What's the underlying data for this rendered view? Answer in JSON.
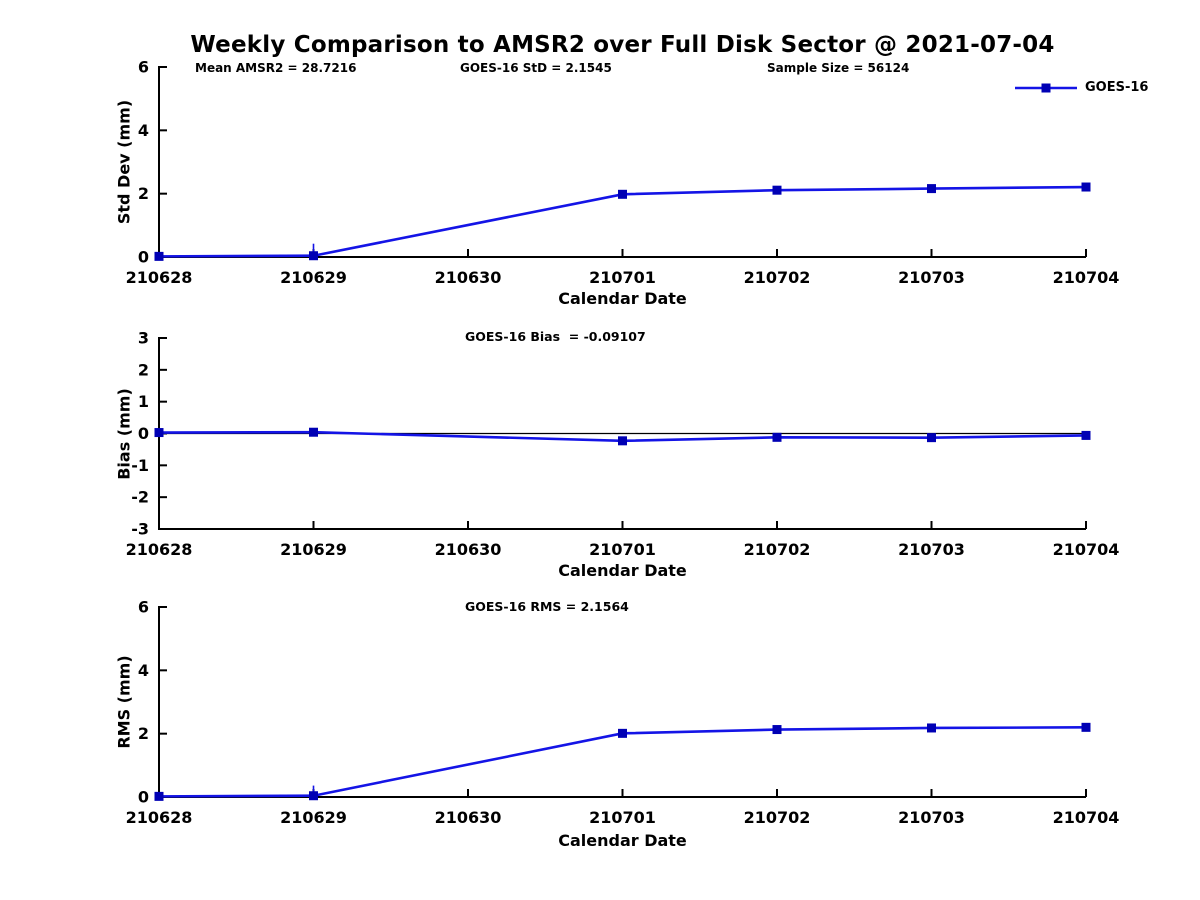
{
  "figure": {
    "title": "Weekly Comparison to AMSR2 over Full Disk Sector @ 2021-07-04",
    "legend": {
      "label": "GOES-16"
    },
    "colors": {
      "line": "#1414e6",
      "marker": "#0000b4",
      "axis": "#000000",
      "zero_line": "#000000",
      "text": "#000000",
      "background": "#ffffff"
    }
  },
  "chart_data": [
    {
      "id": "std-dev",
      "type": "line",
      "ylabel": "Std Dev (mm)",
      "xlabel": "Calendar Date",
      "ylim": [
        0,
        6
      ],
      "yticks": [
        0,
        2,
        4,
        6
      ],
      "categories": [
        "210628",
        "210629",
        "210630",
        "210701",
        "210702",
        "210703",
        "210704"
      ],
      "annotations": [
        "Mean AMSR2 = 28.7216",
        "GOES-16 StD = 2.1545",
        "Sample Size = 56124"
      ],
      "legend_position": "top-right",
      "grid": false,
      "series": [
        {
          "name": "GOES-16",
          "points": [
            {
              "x": "210628",
              "y": 0.02
            },
            {
              "x": "210629",
              "y": 0.04,
              "yerr_up": 0.38
            },
            {
              "x": "210701",
              "y": 1.98
            },
            {
              "x": "210702",
              "y": 2.11
            },
            {
              "x": "210703",
              "y": 2.16
            },
            {
              "x": "210704",
              "y": 2.21
            }
          ]
        }
      ]
    },
    {
      "id": "bias",
      "type": "line",
      "ylabel": "Bias (mm)",
      "xlabel": "Calendar Date",
      "ylim": [
        -3,
        3
      ],
      "yticks": [
        -3,
        -2,
        -1,
        0,
        1,
        2,
        3
      ],
      "zero_reference_line": true,
      "categories": [
        "210628",
        "210629",
        "210630",
        "210701",
        "210702",
        "210703",
        "210704"
      ],
      "annotations": [
        "GOES-16 Bias  = -0.09107"
      ],
      "grid": false,
      "series": [
        {
          "name": "GOES-16",
          "points": [
            {
              "x": "210628",
              "y": 0.03
            },
            {
              "x": "210629",
              "y": 0.04
            },
            {
              "x": "210701",
              "y": -0.23
            },
            {
              "x": "210702",
              "y": -0.12
            },
            {
              "x": "210703",
              "y": -0.13
            },
            {
              "x": "210704",
              "y": -0.06
            }
          ]
        }
      ]
    },
    {
      "id": "rms",
      "type": "line",
      "ylabel": "RMS (mm)",
      "xlabel": "Calendar Date",
      "ylim": [
        0,
        6
      ],
      "yticks": [
        0,
        2,
        4,
        6
      ],
      "categories": [
        "210628",
        "210629",
        "210630",
        "210701",
        "210702",
        "210703",
        "210704"
      ],
      "annotations": [
        "GOES-16 RMS = 2.1564"
      ],
      "grid": false,
      "series": [
        {
          "name": "GOES-16",
          "points": [
            {
              "x": "210628",
              "y": 0.02
            },
            {
              "x": "210629",
              "y": 0.04,
              "yerr_up": 0.32
            },
            {
              "x": "210701",
              "y": 2.01
            },
            {
              "x": "210702",
              "y": 2.13
            },
            {
              "x": "210703",
              "y": 2.18
            },
            {
              "x": "210704",
              "y": 2.2
            }
          ]
        }
      ]
    }
  ]
}
